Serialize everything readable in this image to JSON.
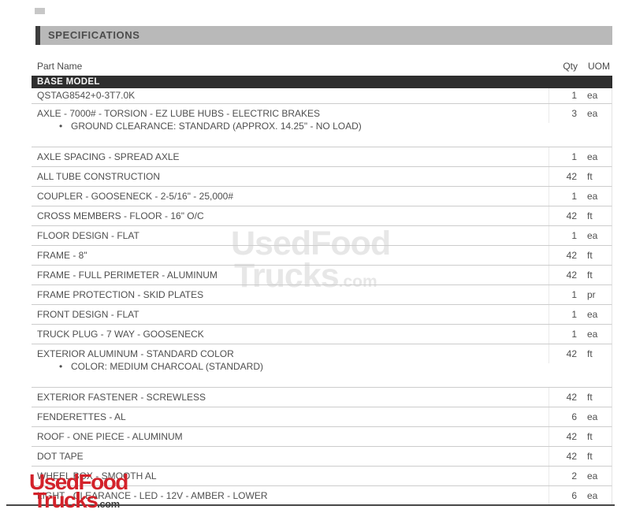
{
  "section_header": {
    "title": "SPECIFICATIONS"
  },
  "table": {
    "columns": {
      "part_name": "Part Name",
      "qty": "Qty",
      "uom": "UOM"
    },
    "group_header": "BASE MODEL",
    "rows": [
      {
        "name": "QSTAG8542+0-3T7.0K",
        "qty": "1",
        "uom": "ea"
      },
      {
        "name": "AXLE - 7000# - TORSION - EZ LUBE HUBS - ELECTRIC BRAKES",
        "bullet": "GROUND CLEARANCE: STANDARD (APPROX. 14.25\" - NO LOAD)",
        "qty": "3",
        "uom": "ea"
      },
      {
        "name": "AXLE SPACING - SPREAD AXLE",
        "qty": "1",
        "uom": "ea"
      },
      {
        "name": "ALL TUBE CONSTRUCTION",
        "qty": "42",
        "uom": "ft"
      },
      {
        "name": "COUPLER - GOOSENECK - 2-5/16\" - 25,000#",
        "qty": "1",
        "uom": "ea"
      },
      {
        "name": "CROSS MEMBERS - FLOOR - 16\" O/C",
        "qty": "42",
        "uom": "ft"
      },
      {
        "name": "FLOOR DESIGN - FLAT",
        "qty": "1",
        "uom": "ea"
      },
      {
        "name": "FRAME - 8\"",
        "qty": "42",
        "uom": "ft"
      },
      {
        "name": "FRAME - FULL PERIMETER - ALUMINUM",
        "qty": "42",
        "uom": "ft"
      },
      {
        "name": "FRAME PROTECTION - SKID PLATES",
        "qty": "1",
        "uom": "pr"
      },
      {
        "name": "FRONT DESIGN - FLAT",
        "qty": "1",
        "uom": "ea"
      },
      {
        "name": "TRUCK PLUG - 7 WAY - GOOSENECK",
        "qty": "1",
        "uom": "ea"
      },
      {
        "name": "EXTERIOR ALUMINUM - STANDARD COLOR",
        "bullet": "COLOR: MEDIUM CHARCOAL (STANDARD)",
        "qty": "42",
        "uom": "ft"
      },
      {
        "name": "EXTERIOR FASTENER - SCREWLESS",
        "qty": "42",
        "uom": "ft"
      },
      {
        "name": "FENDERETTES - AL",
        "qty": "6",
        "uom": "ea"
      },
      {
        "name": "ROOF - ONE PIECE - ALUMINUM",
        "qty": "42",
        "uom": "ft"
      },
      {
        "name": "DOT TAPE",
        "qty": "42",
        "uom": "ft"
      },
      {
        "name": "WHEEL BOX - SMOOTH AL",
        "qty": "2",
        "uom": "ea"
      },
      {
        "name": "LIGHT - CLEARANCE - LED - 12V - AMBER - LOWER",
        "qty": "6",
        "uom": "ea"
      }
    ]
  },
  "watermarks": {
    "center": {
      "line1": "UsedFood",
      "line2": "Trucks",
      "suffix": ".com",
      "color": "#e7e7e7"
    },
    "corner": {
      "line1": "UsedFood",
      "line2": "Trucks",
      "suffix": ".com",
      "color": "#d3222a"
    }
  },
  "colors": {
    "banner_bg": "#b9b9b9",
    "banner_edge": "#3d3d3d",
    "group_header_bg": "#2e2e2e",
    "row_separator": "#cccccc",
    "bottom_rule": "#474747",
    "text": "#4f4f4f"
  }
}
